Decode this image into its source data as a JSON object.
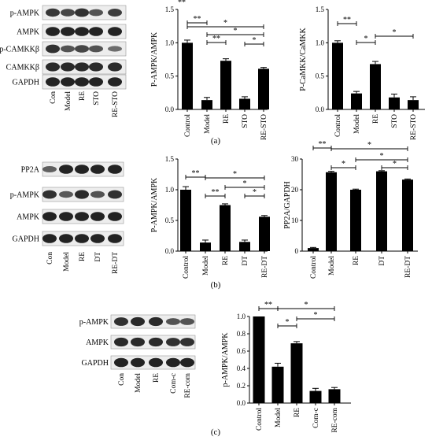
{
  "panel_labels": [
    "(a)",
    "(b)",
    "(c)"
  ],
  "sig": {
    "one": "*",
    "two": "**"
  },
  "colors": {
    "bar": "#000000",
    "axis": "#000000",
    "blot_bg": "#ededed",
    "band": "#1c1c1c"
  },
  "blots": [
    {
      "rows": [
        "p-AMPK",
        "AMPK",
        "p-CAMKKβ",
        "CAMKKβ",
        "GAPDH"
      ],
      "lanes": [
        "Con",
        "Model",
        "RE",
        "STO",
        "RE-STO"
      ]
    },
    {
      "rows": [
        "PP2A",
        "p-AMPK",
        "AMPK",
        "GAPDH"
      ],
      "lanes": [
        "Con",
        "Model",
        "RE",
        "DT",
        "RE-DT"
      ]
    },
    {
      "rows": [
        "p-AMPK",
        "AMPK",
        "GAPDH"
      ],
      "lanes": [
        "Con",
        "Model",
        "RE",
        "Com-c",
        "RE-com"
      ]
    }
  ],
  "chart_data": [
    {
      "type": "bar",
      "categories": [
        "Control",
        "Model",
        "RE",
        "STO",
        "RE-STO"
      ],
      "values": [
        1.0,
        0.14,
        0.73,
        0.16,
        0.61
      ],
      "errors": [
        0.04,
        0.04,
        0.03,
        0.03,
        0.02
      ],
      "ylabel": "P-AMPK/AMPK",
      "ylim": [
        0,
        1.5
      ],
      "yticks": [
        "0.0",
        "0.5",
        "1.0",
        "1.5"
      ],
      "annotations": [
        "**",
        "**",
        "**",
        "*",
        "*",
        "*"
      ]
    },
    {
      "type": "bar",
      "categories": [
        "Control",
        "Model",
        "RE",
        "STO",
        "RE-STO"
      ],
      "values": [
        1.0,
        0.24,
        0.68,
        0.18,
        0.14
      ],
      "errors": [
        0.03,
        0.03,
        0.04,
        0.05,
        0.05
      ],
      "ylabel": "P-CaMKK/CaMKK",
      "ylim": [
        0,
        1.5
      ],
      "yticks": [
        "0.0",
        "0.5",
        "1.0",
        "1.5"
      ],
      "annotations": [
        "**",
        "*",
        "*"
      ]
    },
    {
      "type": "bar",
      "categories": [
        "Control",
        "Model",
        "RE",
        "DT",
        "RE-DT"
      ],
      "values": [
        1.0,
        0.14,
        0.75,
        0.15,
        0.56
      ],
      "errors": [
        0.05,
        0.04,
        0.02,
        0.03,
        0.02
      ],
      "ylabel": "P-AMPK/AMPK",
      "ylim": [
        0,
        1.5
      ],
      "yticks": [
        "0.0",
        "0.5",
        "1.0",
        "1.5"
      ],
      "annotations": [
        "**",
        "**",
        "*",
        "*",
        "*"
      ]
    },
    {
      "type": "bar",
      "categories": [
        "Control",
        "Model",
        "RE",
        "DT",
        "RE-DT"
      ],
      "values": [
        1.0,
        25.7,
        20.0,
        26.0,
        23.3
      ],
      "errors": [
        0.2,
        0.3,
        0.2,
        0.2,
        0.2
      ],
      "ylabel": "PP2A/GAPDH",
      "ylim": [
        0,
        30
      ],
      "yticks": [
        "0",
        "10",
        "20",
        "30"
      ],
      "annotations": [
        "**",
        "*",
        "*",
        "*"
      ]
    },
    {
      "type": "bar",
      "categories": [
        "Control",
        "Model",
        "RE",
        "Com-c",
        "RE-com"
      ],
      "values": [
        1.0,
        0.42,
        0.69,
        0.14,
        0.16
      ],
      "errors": [
        0.0,
        0.04,
        0.02,
        0.03,
        0.02
      ],
      "ylabel": "p-AMPK/AMPK",
      "ylim": [
        0,
        1.0
      ],
      "yticks": [
        "0.0",
        "0.2",
        "0.4",
        "0.6",
        "0.8",
        "1.0"
      ],
      "annotations": [
        "**",
        "*",
        "*"
      ]
    }
  ]
}
